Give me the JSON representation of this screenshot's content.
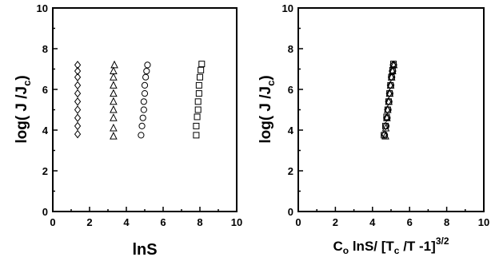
{
  "chart_data": [
    {
      "type": "scatter",
      "xlabel": "lnS",
      "ylabel": "log( J /J",
      "ylabel_sub": "c",
      "ylabel_tail": ")",
      "xlim": [
        0,
        10
      ],
      "ylim": [
        0,
        10
      ],
      "xticks": [
        "0",
        "2",
        "4",
        "6",
        "8",
        "10"
      ],
      "yticks": [
        "0",
        "2",
        "4",
        "6",
        "8",
        "10"
      ],
      "grid": false,
      "series": [
        {
          "marker": "diamond",
          "points": [
            [
              1.35,
              3.8
            ],
            [
              1.35,
              4.2
            ],
            [
              1.35,
              4.6
            ],
            [
              1.35,
              5.0
            ],
            [
              1.35,
              5.4
            ],
            [
              1.35,
              5.8
            ],
            [
              1.35,
              6.2
            ],
            [
              1.35,
              6.6
            ],
            [
              1.35,
              6.9
            ],
            [
              1.35,
              7.2
            ]
          ]
        },
        {
          "marker": "triangle",
          "points": [
            [
              3.3,
              3.7
            ],
            [
              3.3,
              4.1
            ],
            [
              3.3,
              4.6
            ],
            [
              3.3,
              5.0
            ],
            [
              3.3,
              5.4
            ],
            [
              3.3,
              5.8
            ],
            [
              3.3,
              6.2
            ],
            [
              3.3,
              6.6
            ],
            [
              3.3,
              6.9
            ],
            [
              3.35,
              7.2
            ]
          ]
        },
        {
          "marker": "circle",
          "points": [
            [
              4.8,
              3.75
            ],
            [
              4.85,
              4.2
            ],
            [
              4.9,
              4.6
            ],
            [
              4.95,
              5.0
            ],
            [
              4.95,
              5.4
            ],
            [
              5.0,
              5.8
            ],
            [
              5.0,
              6.2
            ],
            [
              5.05,
              6.6
            ],
            [
              5.1,
              6.9
            ],
            [
              5.15,
              7.2
            ]
          ]
        },
        {
          "marker": "square",
          "points": [
            [
              7.8,
              3.75
            ],
            [
              7.8,
              4.2
            ],
            [
              7.85,
              4.65
            ],
            [
              7.9,
              5.0
            ],
            [
              7.9,
              5.4
            ],
            [
              7.95,
              5.8
            ],
            [
              7.95,
              6.2
            ],
            [
              8.0,
              6.6
            ],
            [
              8.05,
              6.95
            ],
            [
              8.1,
              7.25
            ]
          ]
        }
      ]
    },
    {
      "type": "scatter",
      "xlabel": "C",
      "xlabel_sub": "o",
      "xlabel_mid1": " lnS/ [T",
      "xlabel_sub2": "c",
      "xlabel_mid2": " /T -1]",
      "xlabel_sup": "3/2",
      "ylabel": "log( J /J",
      "ylabel_sub": "c",
      "ylabel_tail": ")",
      "xlim": [
        0,
        10
      ],
      "ylim": [
        0,
        10
      ],
      "xticks": [
        "0",
        "2",
        "4",
        "6",
        "8",
        "10"
      ],
      "yticks": [
        "0",
        "2",
        "4",
        "6",
        "8",
        "10"
      ],
      "grid": false,
      "series": [
        {
          "marker": "diamond",
          "points": [
            [
              4.65,
              3.8
            ],
            [
              4.7,
              4.2
            ],
            [
              4.75,
              4.6
            ],
            [
              4.8,
              5.0
            ],
            [
              4.85,
              5.4
            ],
            [
              4.9,
              5.8
            ],
            [
              4.95,
              6.2
            ],
            [
              5.0,
              6.6
            ],
            [
              5.05,
              6.9
            ],
            [
              5.1,
              7.2
            ]
          ]
        },
        {
          "marker": "triangle",
          "points": [
            [
              4.7,
              3.7
            ],
            [
              4.72,
              4.1
            ],
            [
              4.78,
              4.6
            ],
            [
              4.82,
              5.0
            ],
            [
              4.88,
              5.4
            ],
            [
              4.93,
              5.8
            ],
            [
              4.98,
              6.2
            ],
            [
              5.03,
              6.6
            ],
            [
              5.08,
              6.9
            ],
            [
              5.15,
              7.2
            ]
          ]
        },
        {
          "marker": "circle",
          "points": [
            [
              4.66,
              3.75
            ],
            [
              4.74,
              4.2
            ],
            [
              4.8,
              4.6
            ],
            [
              4.85,
              5.0
            ],
            [
              4.9,
              5.4
            ],
            [
              4.95,
              5.8
            ],
            [
              5.0,
              6.2
            ],
            [
              5.05,
              6.6
            ],
            [
              5.1,
              6.9
            ],
            [
              5.15,
              7.2
            ]
          ]
        },
        {
          "marker": "square",
          "points": [
            [
              4.62,
              3.75
            ],
            [
              4.7,
              4.2
            ],
            [
              4.76,
              4.65
            ],
            [
              4.82,
              5.0
            ],
            [
              4.87,
              5.4
            ],
            [
              4.92,
              5.8
            ],
            [
              4.97,
              6.2
            ],
            [
              5.02,
              6.6
            ],
            [
              5.08,
              6.95
            ],
            [
              5.13,
              7.25
            ]
          ]
        }
      ]
    }
  ]
}
